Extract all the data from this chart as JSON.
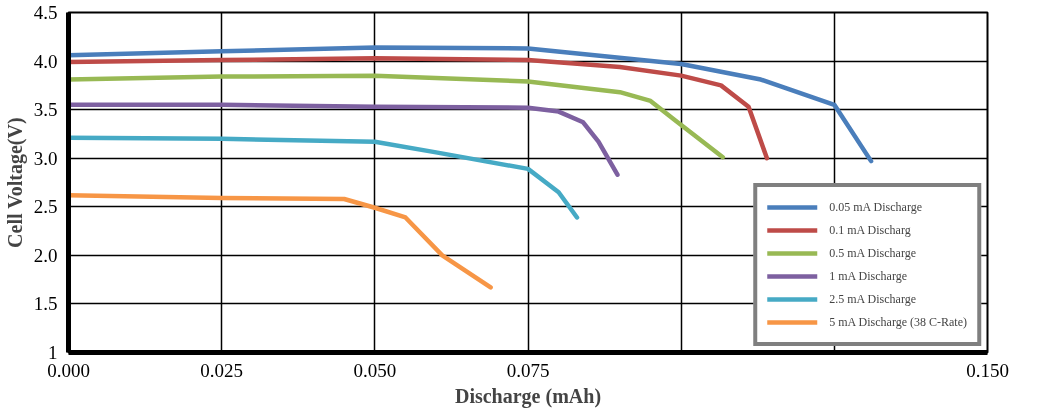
{
  "chart_data": {
    "type": "line",
    "xlabel": "Discharge (mAh)",
    "ylabel": "Cell Voltage(V)",
    "xlim": [
      0,
      0.15
    ],
    "ylim": [
      1,
      4.5
    ],
    "xticks": [
      {
        "value": 0,
        "label": "0.000"
      },
      {
        "value": 0.025,
        "label": "0.025"
      },
      {
        "value": 0.05,
        "label": "0.050"
      },
      {
        "value": 0.075,
        "label": "0.075"
      },
      {
        "value": 0.1,
        "label": null
      },
      {
        "value": 0.125,
        "label": null
      },
      {
        "value": 0.15,
        "label": "0.150"
      }
    ],
    "yticks": [
      1,
      1.5,
      {
        "value": 2,
        "label": "2.0"
      },
      2.5,
      {
        "value": 3,
        "label": "3.0"
      },
      3.5,
      {
        "value": 4,
        "label": "4.0"
      },
      4.5
    ],
    "grid": true,
    "legend": "bottom right",
    "marker": "none",
    "line_style": "solid",
    "series": [
      {
        "name": "0.05 mA Discharge",
        "color": "#4a7ebb",
        "x": [
          0,
          0.025,
          0.05,
          0.075,
          0.1,
          0.113,
          0.125,
          0.131
        ],
        "values": [
          4.06,
          4.1,
          4.14,
          4.13,
          3.97,
          3.81,
          3.55,
          2.97
        ]
      },
      {
        "name": "0.1 mA Discharg",
        "color": "#be4b48",
        "x": [
          0,
          0.025,
          0.05,
          0.075,
          0.09,
          0.1,
          0.1065,
          0.111,
          0.114
        ],
        "values": [
          3.99,
          4.01,
          4.03,
          4.01,
          3.94,
          3.85,
          3.75,
          3.53,
          3.0
        ]
      },
      {
        "name": "0.5 mA Discharge",
        "color": "#98b954",
        "x": [
          0,
          0.025,
          0.05,
          0.075,
          0.09,
          0.095,
          0.099,
          0.1068
        ],
        "values": [
          3.81,
          3.84,
          3.85,
          3.79,
          3.68,
          3.59,
          3.39,
          3.01
        ]
      },
      {
        "name": "1 mA Discharge",
        "color": "#7d60a0",
        "x": [
          0,
          0.025,
          0.05,
          0.075,
          0.08,
          0.084,
          0.0865,
          0.0896
        ],
        "values": [
          3.55,
          3.55,
          3.53,
          3.52,
          3.48,
          3.37,
          3.17,
          2.83
        ]
      },
      {
        "name": "2.5 mA Discharge",
        "color": "#46aac5",
        "x": [
          0,
          0.025,
          0.05,
          0.06,
          0.075,
          0.08,
          0.083
        ],
        "values": [
          3.21,
          3.2,
          3.17,
          3.06,
          2.89,
          2.65,
          2.39
        ]
      },
      {
        "name": "5 mA Discharge (38 C-Rate)",
        "color": "#f79646",
        "x": [
          0,
          0.025,
          0.045,
          0.05,
          0.055,
          0.061,
          0.0689
        ],
        "values": [
          2.62,
          2.59,
          2.58,
          2.49,
          2.39,
          2.0,
          1.67
        ]
      }
    ]
  }
}
